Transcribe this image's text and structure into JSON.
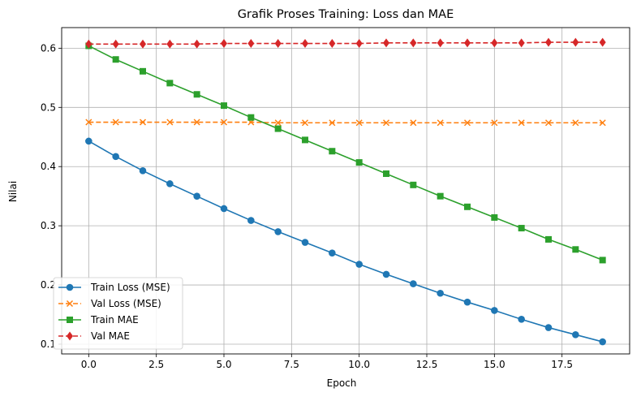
{
  "chart_data": {
    "type": "line",
    "title": "Grafik Proses Training: Loss dan MAE",
    "xlabel": "Epoch",
    "ylabel": "Nilai",
    "xlim": [
      -1,
      20
    ],
    "ylim": [
      0.0835,
      0.6348
    ],
    "xticks": [
      0.0,
      2.5,
      5.0,
      7.5,
      10.0,
      12.5,
      15.0,
      17.5
    ],
    "xtick_labels": [
      "0.0",
      "2.5",
      "5.0",
      "7.5",
      "10.0",
      "12.5",
      "15.0",
      "17.5"
    ],
    "yticks": [
      0.1,
      0.2,
      0.3,
      0.4,
      0.5,
      0.6
    ],
    "ytick_labels": [
      "0.1",
      "0.2",
      "0.3",
      "0.4",
      "0.5",
      "0.6"
    ],
    "grid": true,
    "legend_position": "lower-left",
    "x": [
      0,
      1,
      2,
      3,
      4,
      5,
      6,
      7,
      8,
      9,
      10,
      11,
      12,
      13,
      14,
      15,
      16,
      17,
      18,
      19
    ],
    "series": [
      {
        "name": "Train Loss (MSE)",
        "color": "#1f77b4",
        "linestyle": "solid",
        "marker": "circle",
        "values": [
          0.443,
          0.417,
          0.393,
          0.371,
          0.35,
          0.329,
          0.309,
          0.29,
          0.272,
          0.254,
          0.235,
          0.218,
          0.202,
          0.186,
          0.171,
          0.157,
          0.142,
          0.128,
          0.116,
          0.104
        ]
      },
      {
        "name": "Val Loss (MSE)",
        "color": "#ff7f0e",
        "linestyle": "dashed",
        "marker": "x",
        "values": [
          0.475,
          0.475,
          0.475,
          0.475,
          0.475,
          0.475,
          0.475,
          0.474,
          0.474,
          0.474,
          0.474,
          0.474,
          0.474,
          0.474,
          0.474,
          0.474,
          0.474,
          0.474,
          0.474,
          0.474
        ]
      },
      {
        "name": "Train MAE",
        "color": "#2ca02c",
        "linestyle": "solid",
        "marker": "square",
        "values": [
          0.604,
          0.581,
          0.561,
          0.541,
          0.522,
          0.503,
          0.483,
          0.464,
          0.445,
          0.426,
          0.407,
          0.388,
          0.369,
          0.35,
          0.332,
          0.314,
          0.296,
          0.277,
          0.26,
          0.242
        ]
      },
      {
        "name": "Val MAE",
        "color": "#d62728",
        "linestyle": "dashed",
        "marker": "diamond",
        "values": [
          0.607,
          0.607,
          0.607,
          0.607,
          0.607,
          0.608,
          0.608,
          0.608,
          0.608,
          0.608,
          0.608,
          0.609,
          0.609,
          0.609,
          0.609,
          0.609,
          0.609,
          0.61,
          0.61,
          0.61
        ]
      }
    ]
  }
}
